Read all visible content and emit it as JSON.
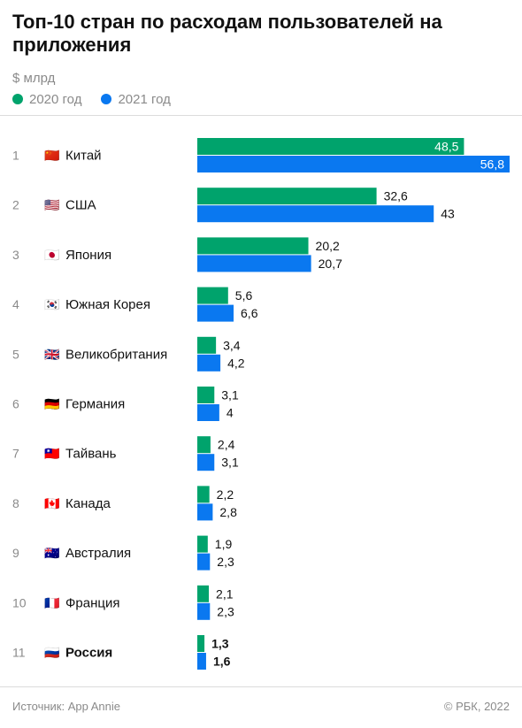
{
  "title": "Топ-10 стран по расходам пользователей на приложения",
  "unit": "$ млрд",
  "legend": [
    {
      "label": "2020 год",
      "color": "#00a36c"
    },
    {
      "label": "2021 год",
      "color": "#0a78f0"
    }
  ],
  "footer": {
    "source": "Источник: App Annie",
    "copyright": "© РБК, 2022"
  },
  "chart_data": {
    "type": "bar",
    "orientation": "horizontal",
    "categories": [
      "Китай",
      "США",
      "Япония",
      "Южная Корея",
      "Великобритания",
      "Германия",
      "Тайвань",
      "Канада",
      "Австралия",
      "Франция",
      "Россия"
    ],
    "ranks": [
      "1",
      "2",
      "3",
      "4",
      "5",
      "6",
      "7",
      "8",
      "9",
      "10",
      "11"
    ],
    "flags": [
      "🇨🇳",
      "🇺🇸",
      "🇯🇵",
      "🇰🇷",
      "🇬🇧",
      "🇩🇪",
      "🇹🇼",
      "🇨🇦",
      "🇦🇺",
      "🇫🇷",
      "🇷🇺"
    ],
    "highlight_category": "Россия",
    "series": [
      {
        "name": "2020 год",
        "color": "#00a36c",
        "values": [
          48.5,
          32.6,
          20.2,
          5.6,
          3.4,
          3.1,
          2.4,
          2.2,
          1.9,
          2.1,
          1.3
        ],
        "labels": [
          "48,5",
          "32,6",
          "20,2",
          "5,6",
          "3,4",
          "3,1",
          "2,4",
          "2,2",
          "1,9",
          "2,1",
          "1,3"
        ]
      },
      {
        "name": "2021 год",
        "color": "#0a78f0",
        "values": [
          56.8,
          43,
          20.7,
          6.6,
          4.2,
          4,
          3.1,
          2.8,
          2.3,
          2.3,
          1.6
        ],
        "labels": [
          "56,8",
          "43",
          "20,7",
          "6,6",
          "4,2",
          "4",
          "3,1",
          "2,8",
          "2,3",
          "2,3",
          "1,6"
        ]
      }
    ],
    "xlim": [
      0,
      56.8
    ],
    "grid": false,
    "legend_position": "top-left"
  }
}
